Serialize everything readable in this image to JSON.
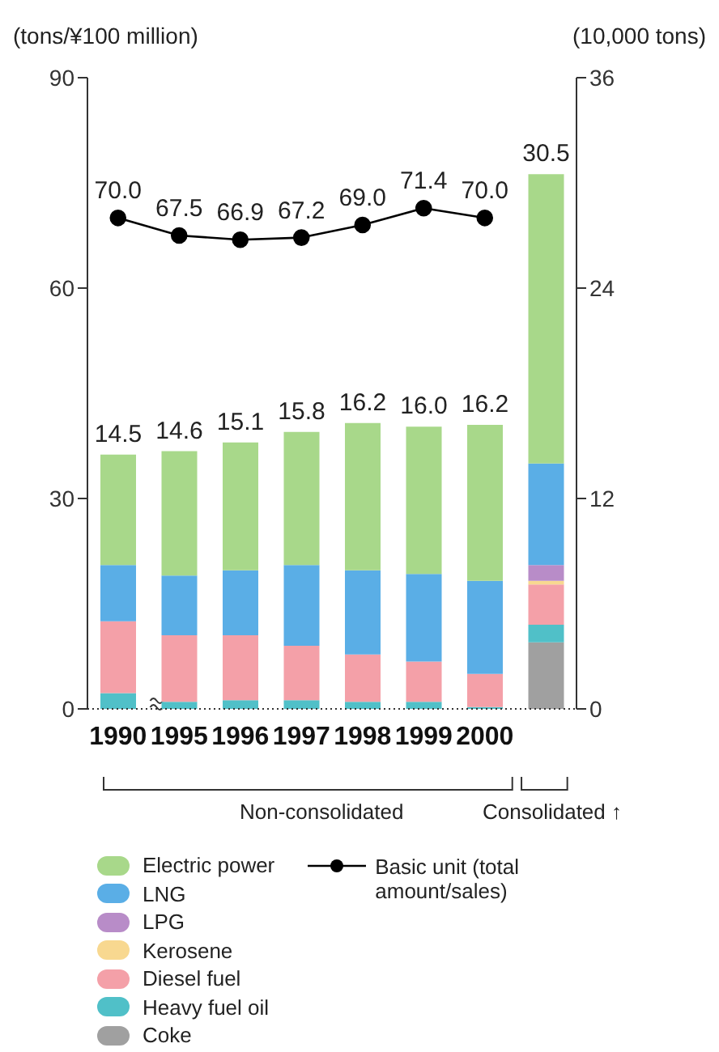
{
  "chart_data": {
    "type": "bar",
    "stacked": true,
    "ylabel": "(tons/¥100 million)",
    "y2label": "(10,000 tons)",
    "categories": [
      "1990",
      "1995",
      "1996",
      "1997",
      "1998",
      "1999",
      "2000",
      null
    ],
    "series": [
      {
        "name": "Coke",
        "color": "#a0a0a0",
        "axis": "y2",
        "values": [
          null,
          null,
          null,
          null,
          null,
          null,
          null,
          3.8
        ]
      },
      {
        "name": "Heavy fuel oil",
        "color": "#50c0c8",
        "axis": "y2",
        "values": [
          0.9,
          0.4,
          0.5,
          0.5,
          0.4,
          0.4,
          0.1,
          1.0
        ]
      },
      {
        "name": "Diesel fuel",
        "color": "#f4a0a8",
        "axis": "y2",
        "values": [
          4.1,
          3.8,
          3.7,
          3.1,
          2.7,
          2.3,
          1.9,
          2.3
        ]
      },
      {
        "name": "Kerosene",
        "color": "#f8d890",
        "axis": "y2",
        "values": [
          null,
          null,
          null,
          null,
          null,
          null,
          null,
          0.2
        ]
      },
      {
        "name": "LPG",
        "color": "#b88cc8",
        "axis": "y2",
        "values": [
          null,
          null,
          null,
          null,
          null,
          null,
          null,
          0.9
        ]
      },
      {
        "name": "LNG",
        "color": "#5aaee6",
        "axis": "y2",
        "values": [
          3.2,
          3.4,
          3.7,
          4.6,
          4.8,
          5.0,
          5.3,
          5.8
        ]
      },
      {
        "name": "Electric power",
        "color": "#a8d88a",
        "axis": "y2",
        "values": [
          6.3,
          7.1,
          7.3,
          7.6,
          8.4,
          8.4,
          8.9,
          16.5
        ]
      },
      {
        "name": "Basic unit (total amount/sales)",
        "type": "line",
        "color": "#000000",
        "marker": "circle",
        "values": [
          70.0,
          67.5,
          66.9,
          67.2,
          69.0,
          71.4,
          70.0,
          null
        ],
        "value_labels": [
          "70.0",
          "67.5",
          "66.9",
          "67.2",
          "69.0",
          "71.4",
          "70.0",
          null
        ]
      }
    ],
    "totals": [
      "14.5",
      "14.6",
      "15.1",
      "15.8",
      "16.2",
      "16.0",
      "16.2",
      "30.5"
    ],
    "ylim": [
      0,
      90
    ],
    "yticks": [
      0,
      30,
      60,
      90
    ],
    "y2lim": [
      0,
      36
    ],
    "y2ticks": [
      0,
      12,
      24,
      36
    ],
    "legend": "bottom",
    "annotations": [
      "Non-consolidated",
      "Consolidated ↑"
    ]
  }
}
